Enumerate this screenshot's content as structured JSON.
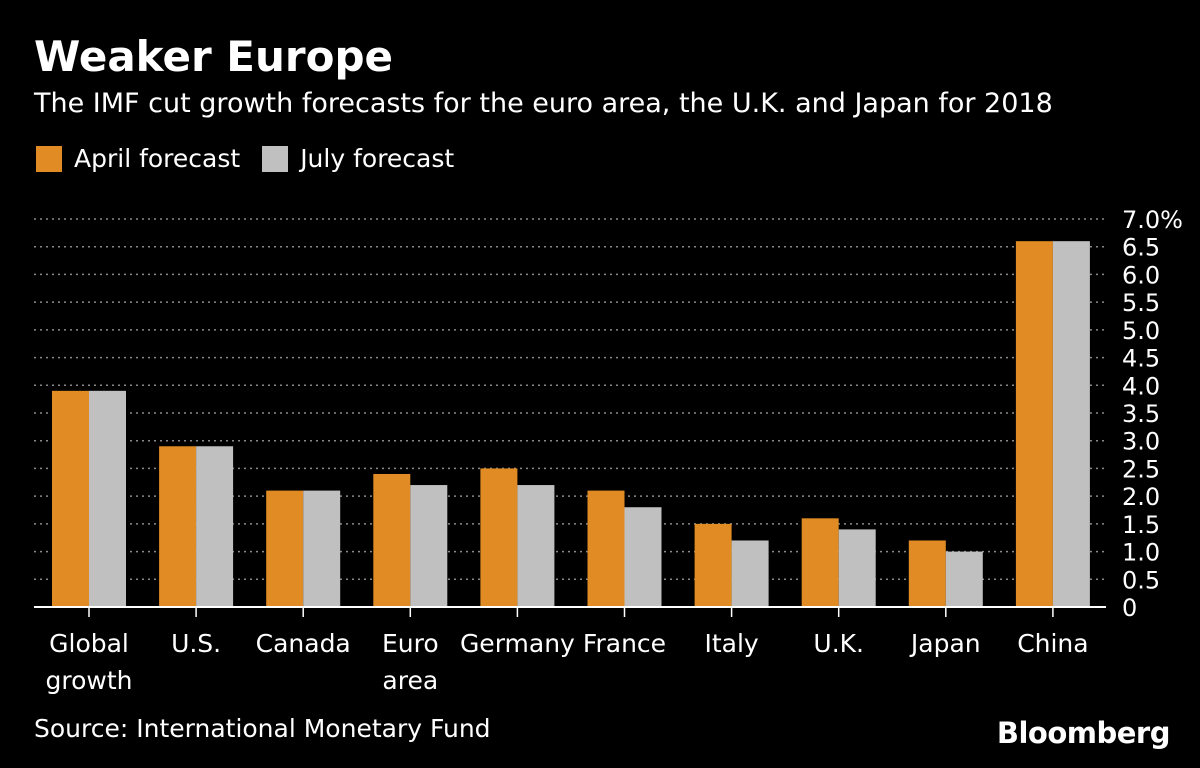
{
  "title": "Weaker Europe",
  "subtitle": "The IMF cut growth forecasts for the euro area, the U.K. and Japan for 2018",
  "legend": {
    "april": "April forecast",
    "july": "July forecast"
  },
  "source": "Source: International Monetary Fund",
  "brand": "Bloomberg",
  "colors": {
    "april": "#e08b23",
    "july": "#c0c0c0",
    "grid": "#8a8a8a",
    "axis": "#ffffff"
  },
  "chart_data": {
    "type": "bar",
    "title": "Weaker Europe",
    "xlabel": "",
    "ylabel": "",
    "ylim": [
      0,
      7.0
    ],
    "yticks": [
      "0",
      "0.5",
      "1.0",
      "1.5",
      "2.0",
      "2.5",
      "3.0",
      "3.5",
      "4.0",
      "4.5",
      "5.0",
      "5.5",
      "6.0",
      "6.5",
      "7.0%"
    ],
    "categories": [
      [
        "Global",
        "growth"
      ],
      [
        "U.S."
      ],
      [
        "Canada"
      ],
      [
        "Euro",
        "area"
      ],
      [
        "Germany"
      ],
      [
        "France"
      ],
      [
        "Italy"
      ],
      [
        "U.K."
      ],
      [
        "Japan"
      ],
      [
        "China"
      ]
    ],
    "series": [
      {
        "name": "April forecast",
        "values": [
          3.9,
          2.9,
          2.1,
          2.4,
          2.5,
          2.1,
          1.5,
          1.6,
          1.2,
          6.6
        ]
      },
      {
        "name": "July forecast",
        "values": [
          3.9,
          2.9,
          2.1,
          2.2,
          2.2,
          1.8,
          1.2,
          1.4,
          1.0,
          6.6
        ]
      }
    ],
    "legend_position": "top-left",
    "grid": true
  }
}
